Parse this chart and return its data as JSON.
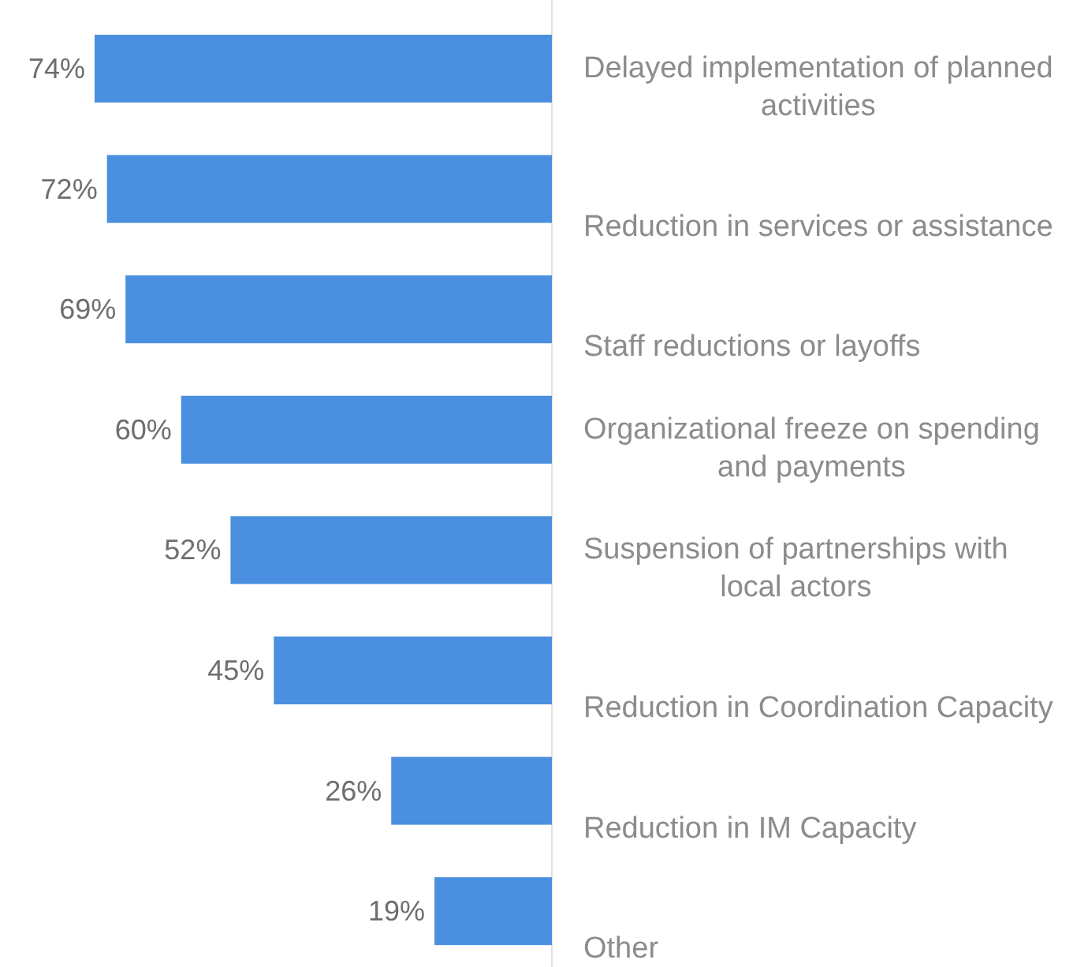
{
  "chart_data": {
    "type": "bar",
    "orientation": "horizontal",
    "categories": [
      "Delayed implementation of planned activities",
      "Reduction in services or assistance",
      "Staff reductions or layoffs",
      "Organizational freeze on spending and payments",
      "Suspension of partnerships with local actors",
      "Reduction in Coordination Capacity",
      "Reduction in IM Capacity",
      "Other"
    ],
    "values": [
      74,
      72,
      69,
      60,
      52,
      45,
      26,
      19
    ],
    "value_labels": [
      "74%",
      "72%",
      "69%",
      "60%",
      "52%",
      "45%",
      "26%",
      "19%"
    ],
    "color": "#4a8fe0"
  }
}
